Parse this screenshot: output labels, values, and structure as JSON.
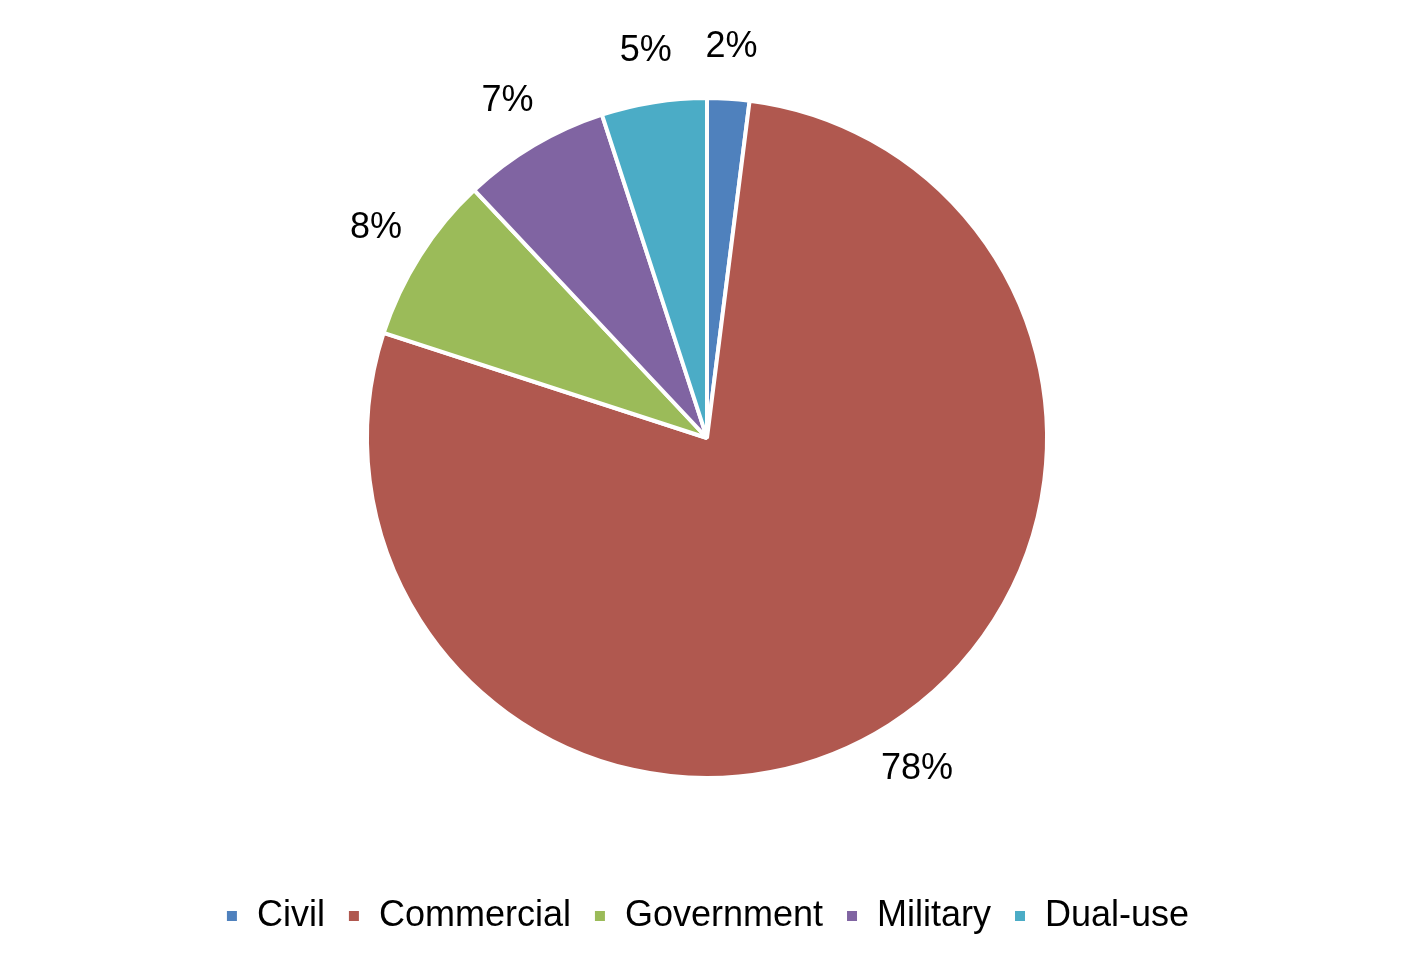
{
  "chart_data": {
    "type": "pie",
    "categories": [
      "Civil",
      "Commercial",
      "Government",
      "Military",
      "Dual-use"
    ],
    "values": [
      2,
      78,
      8,
      7,
      5
    ],
    "value_labels": [
      "2%",
      "78%",
      "8%",
      "7%",
      "5%"
    ],
    "colors": [
      "#4f81bd",
      "#b0584f",
      "#9bbb59",
      "#8064a2",
      "#4bacc6"
    ],
    "legend": "bottom",
    "data_labels": true
  }
}
